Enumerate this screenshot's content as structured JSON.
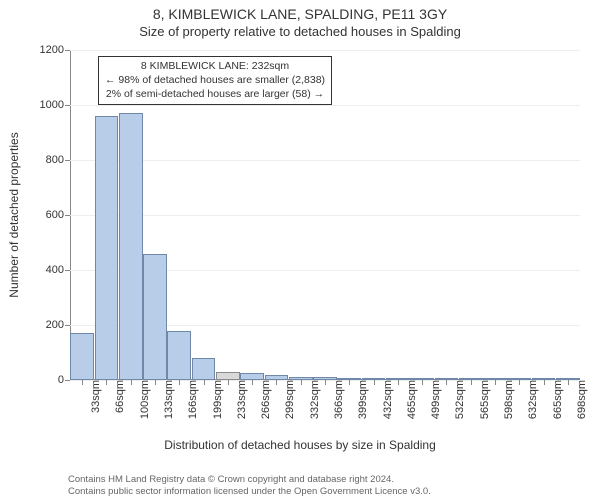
{
  "title": "8, KIMBLEWICK LANE, SPALDING, PE11 3GY",
  "subtitle": "Size of property relative to detached houses in Spalding",
  "chart": {
    "type": "histogram",
    "y_label": "Number of detached properties",
    "x_label": "Distribution of detached houses by size in Spalding",
    "background_color": "#ffffff",
    "grid_color": "#eeeeee",
    "axis_color": "#888888",
    "bar_fill": "#b8cee8",
    "bar_stroke": "#6f87a8",
    "highlight_fill": "#d9d9d9",
    "highlight_stroke": "#8a8a8a",
    "y_max": 1200,
    "y_ticks": [
      0,
      200,
      400,
      600,
      800,
      1000,
      1200
    ],
    "x_labels": [
      "33sqm",
      "66sqm",
      "100sqm",
      "133sqm",
      "166sqm",
      "199sqm",
      "233sqm",
      "266sqm",
      "299sqm",
      "332sqm",
      "366sqm",
      "399sqm",
      "432sqm",
      "465sqm",
      "499sqm",
      "532sqm",
      "565sqm",
      "598sqm",
      "632sqm",
      "665sqm",
      "698sqm"
    ],
    "values": [
      170,
      960,
      970,
      460,
      180,
      80,
      30,
      25,
      18,
      12,
      10,
      8,
      6,
      4,
      3,
      2,
      2,
      1,
      1,
      1,
      1
    ],
    "highlight_index": 6,
    "bar_width_ratio": 0.98,
    "label_fontsize": 11,
    "axis_label_fontsize": 12,
    "title_fontsize": 14
  },
  "annotation": {
    "line1": "8 KIMBLEWICK LANE: 232sqm",
    "line2": "← 98% of detached houses are smaller (2,838)",
    "line3": "2% of semi-detached houses are larger (58) →"
  },
  "footer": {
    "line1": "Contains HM Land Registry data © Crown copyright and database right 2024.",
    "line2": "Contains public sector information licensed under the Open Government Licence v3.0."
  }
}
